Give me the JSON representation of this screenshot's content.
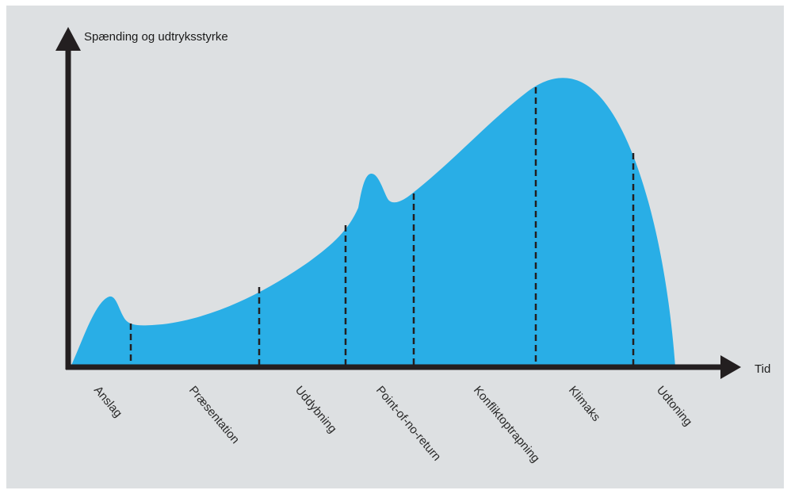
{
  "diagram": {
    "y_axis_label": "Spænding og udtryksstyrke",
    "x_axis_label": "Tid",
    "phases": [
      "Anslag",
      "Præsentation",
      "Uddybning",
      "Point-of-no-return",
      "Konfliktoptrapning",
      "Klimaks",
      "Udtoning"
    ],
    "colors": {
      "background": "#dde0e2",
      "curve_fill": "#29aee6",
      "axis": "#231f20",
      "divider": "#231f20"
    }
  }
}
